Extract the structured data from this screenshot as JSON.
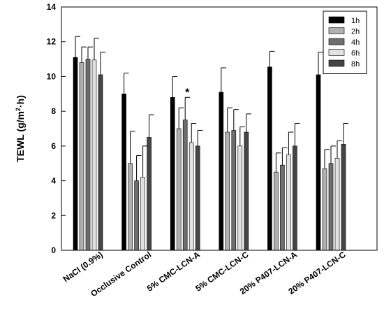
{
  "chart_data": {
    "type": "bar",
    "title": "",
    "xlabel": "",
    "ylabel": "TEWL (g/m²·h)",
    "ylabel_parts": {
      "prefix": "TEWL (g/m",
      "sup": "2",
      "suffix": "·h)"
    },
    "ylim": [
      0,
      14
    ],
    "yticks": [
      0,
      2,
      4,
      6,
      8,
      10,
      12,
      14
    ],
    "ytick_labels": [
      "0",
      "2",
      "4",
      "6",
      "8",
      "10",
      "12",
      "14"
    ],
    "grid": false,
    "legend_position": "top-right",
    "categories": [
      "NaCl (0.9%)",
      "Occlusive Control",
      "5% CMC-LCN-A",
      "5% CMC-LCN-C",
      "20% P407-LCN-A",
      "20% P407-LCN-C"
    ],
    "series": [
      {
        "name": "1h",
        "color": "#000000",
        "values": [
          11.1,
          9.0,
          8.8,
          9.1,
          10.55,
          10.1
        ],
        "errors": [
          1.2,
          1.2,
          1.2,
          1.4,
          0.9,
          1.3
        ]
      },
      {
        "name": "2h",
        "color": "#b0b0b0",
        "values": [
          10.8,
          5.0,
          7.0,
          6.8,
          4.5,
          4.7
        ],
        "errors": [
          0.9,
          1.85,
          1.2,
          1.4,
          1.1,
          1.1
        ]
      },
      {
        "name": "4h",
        "color": "#6e6e6e",
        "values": [
          11.0,
          4.0,
          7.5,
          6.9,
          4.9,
          5.0
        ],
        "errors": [
          0.7,
          1.45,
          1.3,
          1.2,
          1.0,
          1.0
        ]
      },
      {
        "name": "6h",
        "color": "#e2e2e2",
        "values": [
          10.95,
          4.2,
          6.2,
          6.0,
          5.5,
          5.3
        ],
        "errors": [
          1.25,
          1.8,
          1.1,
          1.1,
          1.3,
          1.0
        ]
      },
      {
        "name": "8h",
        "color": "#454545",
        "values": [
          10.1,
          6.5,
          6.0,
          6.8,
          6.0,
          6.1
        ],
        "errors": [
          1.3,
          1.3,
          0.9,
          1.05,
          1.3,
          1.2
        ]
      }
    ],
    "annotations": [
      {
        "text": "*",
        "category_index": 2,
        "series_index": 2
      }
    ]
  }
}
